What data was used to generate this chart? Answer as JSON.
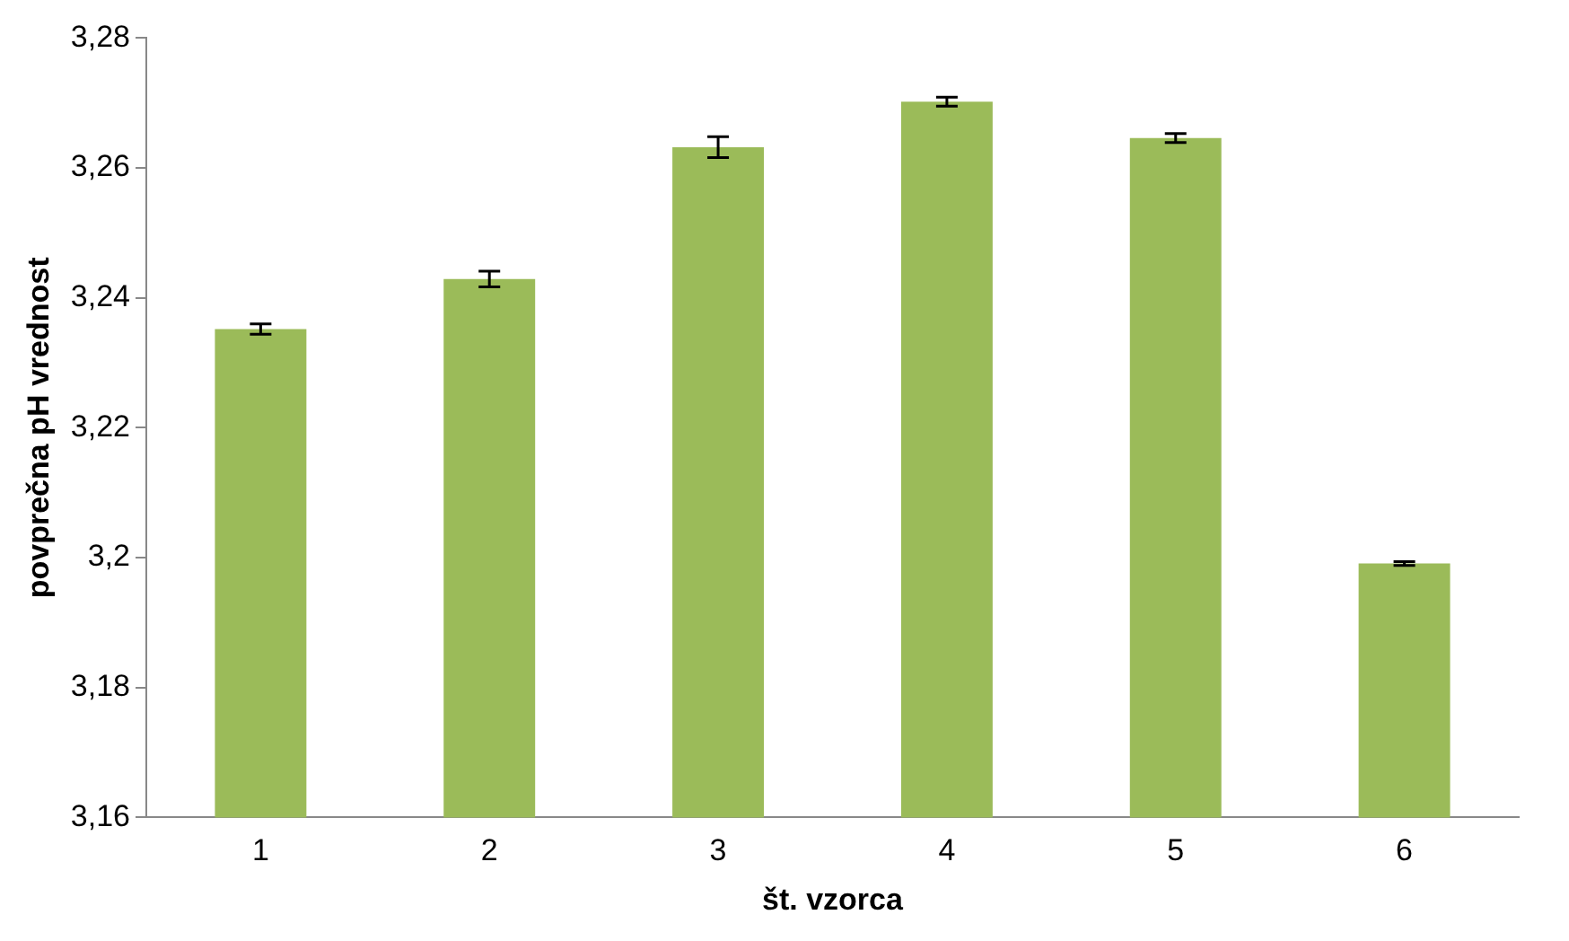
{
  "chart_data": {
    "type": "bar",
    "xlabel": "št. vzorca",
    "ylabel": "povprečna pH vrednost",
    "categories": [
      "1",
      "2",
      "3",
      "4",
      "5",
      "6"
    ],
    "values": [
      3.2352,
      3.2429,
      3.2632,
      3.2702,
      3.2646,
      3.1991
    ],
    "errors": [
      0.0008,
      0.0012,
      0.0016,
      0.0007,
      0.0007,
      0.0003
    ],
    "color": "#9bbb59",
    "ylim": [
      3.16,
      3.28
    ],
    "yticks": [
      {
        "value": 3.16,
        "label": "3,16"
      },
      {
        "value": 3.18,
        "label": "3,18"
      },
      {
        "value": 3.2,
        "label": "3,2"
      },
      {
        "value": 3.22,
        "label": "3,22"
      },
      {
        "value": 3.24,
        "label": "3,24"
      },
      {
        "value": 3.26,
        "label": "3,26"
      },
      {
        "value": 3.28,
        "label": "3,28"
      }
    ],
    "grid": false,
    "legend": false
  }
}
